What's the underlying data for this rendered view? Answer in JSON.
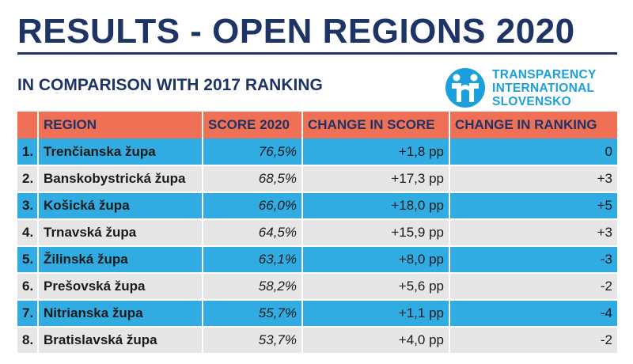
{
  "header": {
    "title": "RESULTS - OPEN REGIONS 2020",
    "subtitle": "IN COMPARISON WITH 2017 RANKING"
  },
  "logo": {
    "icon": "transparency-international-logo-icon",
    "lines": [
      "TRANSPARENCY",
      "INTERNATIONAL",
      "SLOVENSKO"
    ],
    "color": "#1aa0dd"
  },
  "colors": {
    "title": "#1f3466",
    "header_row": "#f07055",
    "row_highlight": "#31ace2",
    "row_plain": "#e6e6e6"
  },
  "table": {
    "columns": [
      "",
      "REGION",
      "SCORE 2020",
      "CHANGE IN SCORE",
      "CHANGE IN RANKING"
    ],
    "rows": [
      {
        "rank": "1.",
        "region": "Trenčianska župa",
        "score": "76,5%",
        "change_score": "+1,8 pp",
        "change_ranking": "0"
      },
      {
        "rank": "2.",
        "region": "Banskobystrická župa",
        "score": "68,5%",
        "change_score": "+17,3 pp",
        "change_ranking": "+3"
      },
      {
        "rank": "3.",
        "region": "Košická župa",
        "score": "66,0%",
        "change_score": "+18,0 pp",
        "change_ranking": "+5"
      },
      {
        "rank": "4.",
        "region": "Trnavská župa",
        "score": "64,5%",
        "change_score": "+15,9 pp",
        "change_ranking": "+3"
      },
      {
        "rank": "5.",
        "region": "Žilinská župa",
        "score": "63,1%",
        "change_score": "+8,0 pp",
        "change_ranking": "-3"
      },
      {
        "rank": "6.",
        "region": "Prešovská župa",
        "score": "58,2%",
        "change_score": "+5,6 pp",
        "change_ranking": "-2"
      },
      {
        "rank": "7.",
        "region": "Nitrianska župa",
        "score": "55,7%",
        "change_score": "+1,1 pp",
        "change_ranking": "-4"
      },
      {
        "rank": "8.",
        "region": "Bratislavská župa",
        "score": "53,7%",
        "change_score": "+4,0 pp",
        "change_ranking": "-2"
      }
    ]
  }
}
